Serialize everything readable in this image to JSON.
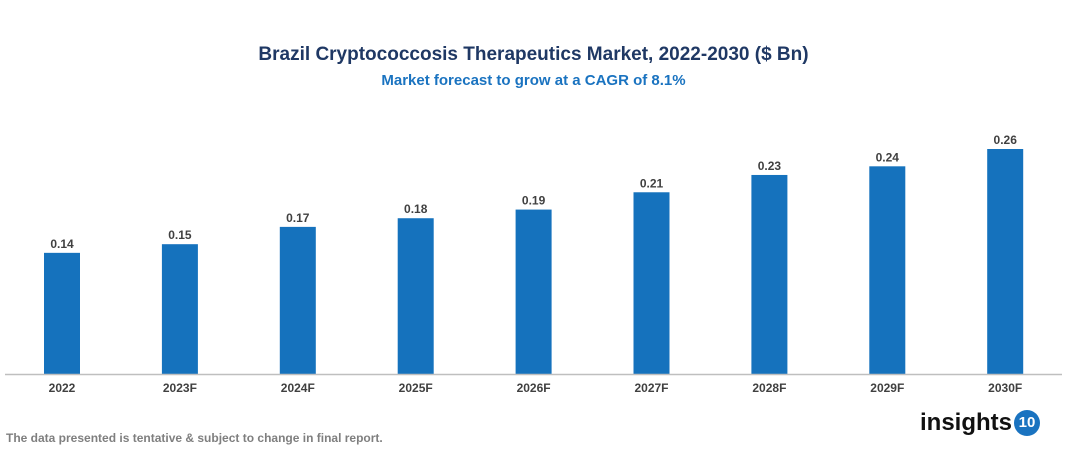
{
  "chart_data": {
    "type": "bar",
    "title": "Brazil Cryptococcosis Therapeutics Market, 2022-2030 ($ Bn)",
    "subtitle": "Market forecast to grow at a CAGR of 8.1%",
    "categories": [
      "2022",
      "2023F",
      "2024F",
      "2025F",
      "2026F",
      "2027F",
      "2028F",
      "2029F",
      "2030F"
    ],
    "values": [
      0.14,
      0.15,
      0.17,
      0.18,
      0.19,
      0.21,
      0.23,
      0.24,
      0.26
    ],
    "xlabel": "",
    "ylabel": "",
    "ylim": [
      0,
      0.26
    ],
    "grid": false,
    "bar_color": "#1572bd"
  },
  "footer": "The data presented is tentative & subject to change in final report.",
  "logo": {
    "text": "insights",
    "badge": "10"
  }
}
